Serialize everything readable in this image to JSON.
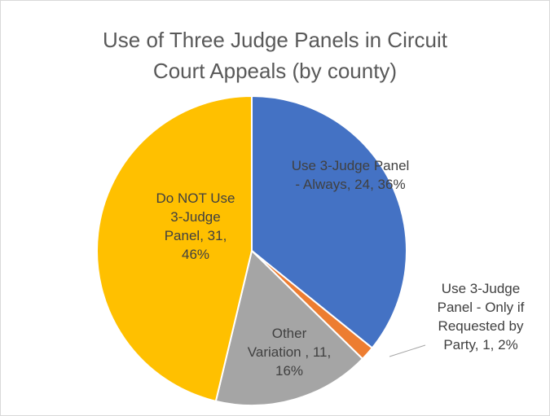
{
  "chart_data": {
    "type": "pie",
    "title": "Use of Three Judge Panels in Circuit Court Appeals (by county)",
    "categories": [
      "Use 3-Judge Panel - Always",
      "Use 3-Judge Panel - Only if Requested by Party",
      "Other Variation ",
      "Do NOT Use 3-Judge Panel"
    ],
    "values": [
      24,
      1,
      11,
      31
    ],
    "percent_labels": [
      "36%",
      "2%",
      "16%",
      "46%"
    ],
    "colors": [
      "#4472c4",
      "#ed7d31",
      "#a5a5a5",
      "#ffc000"
    ]
  }
}
